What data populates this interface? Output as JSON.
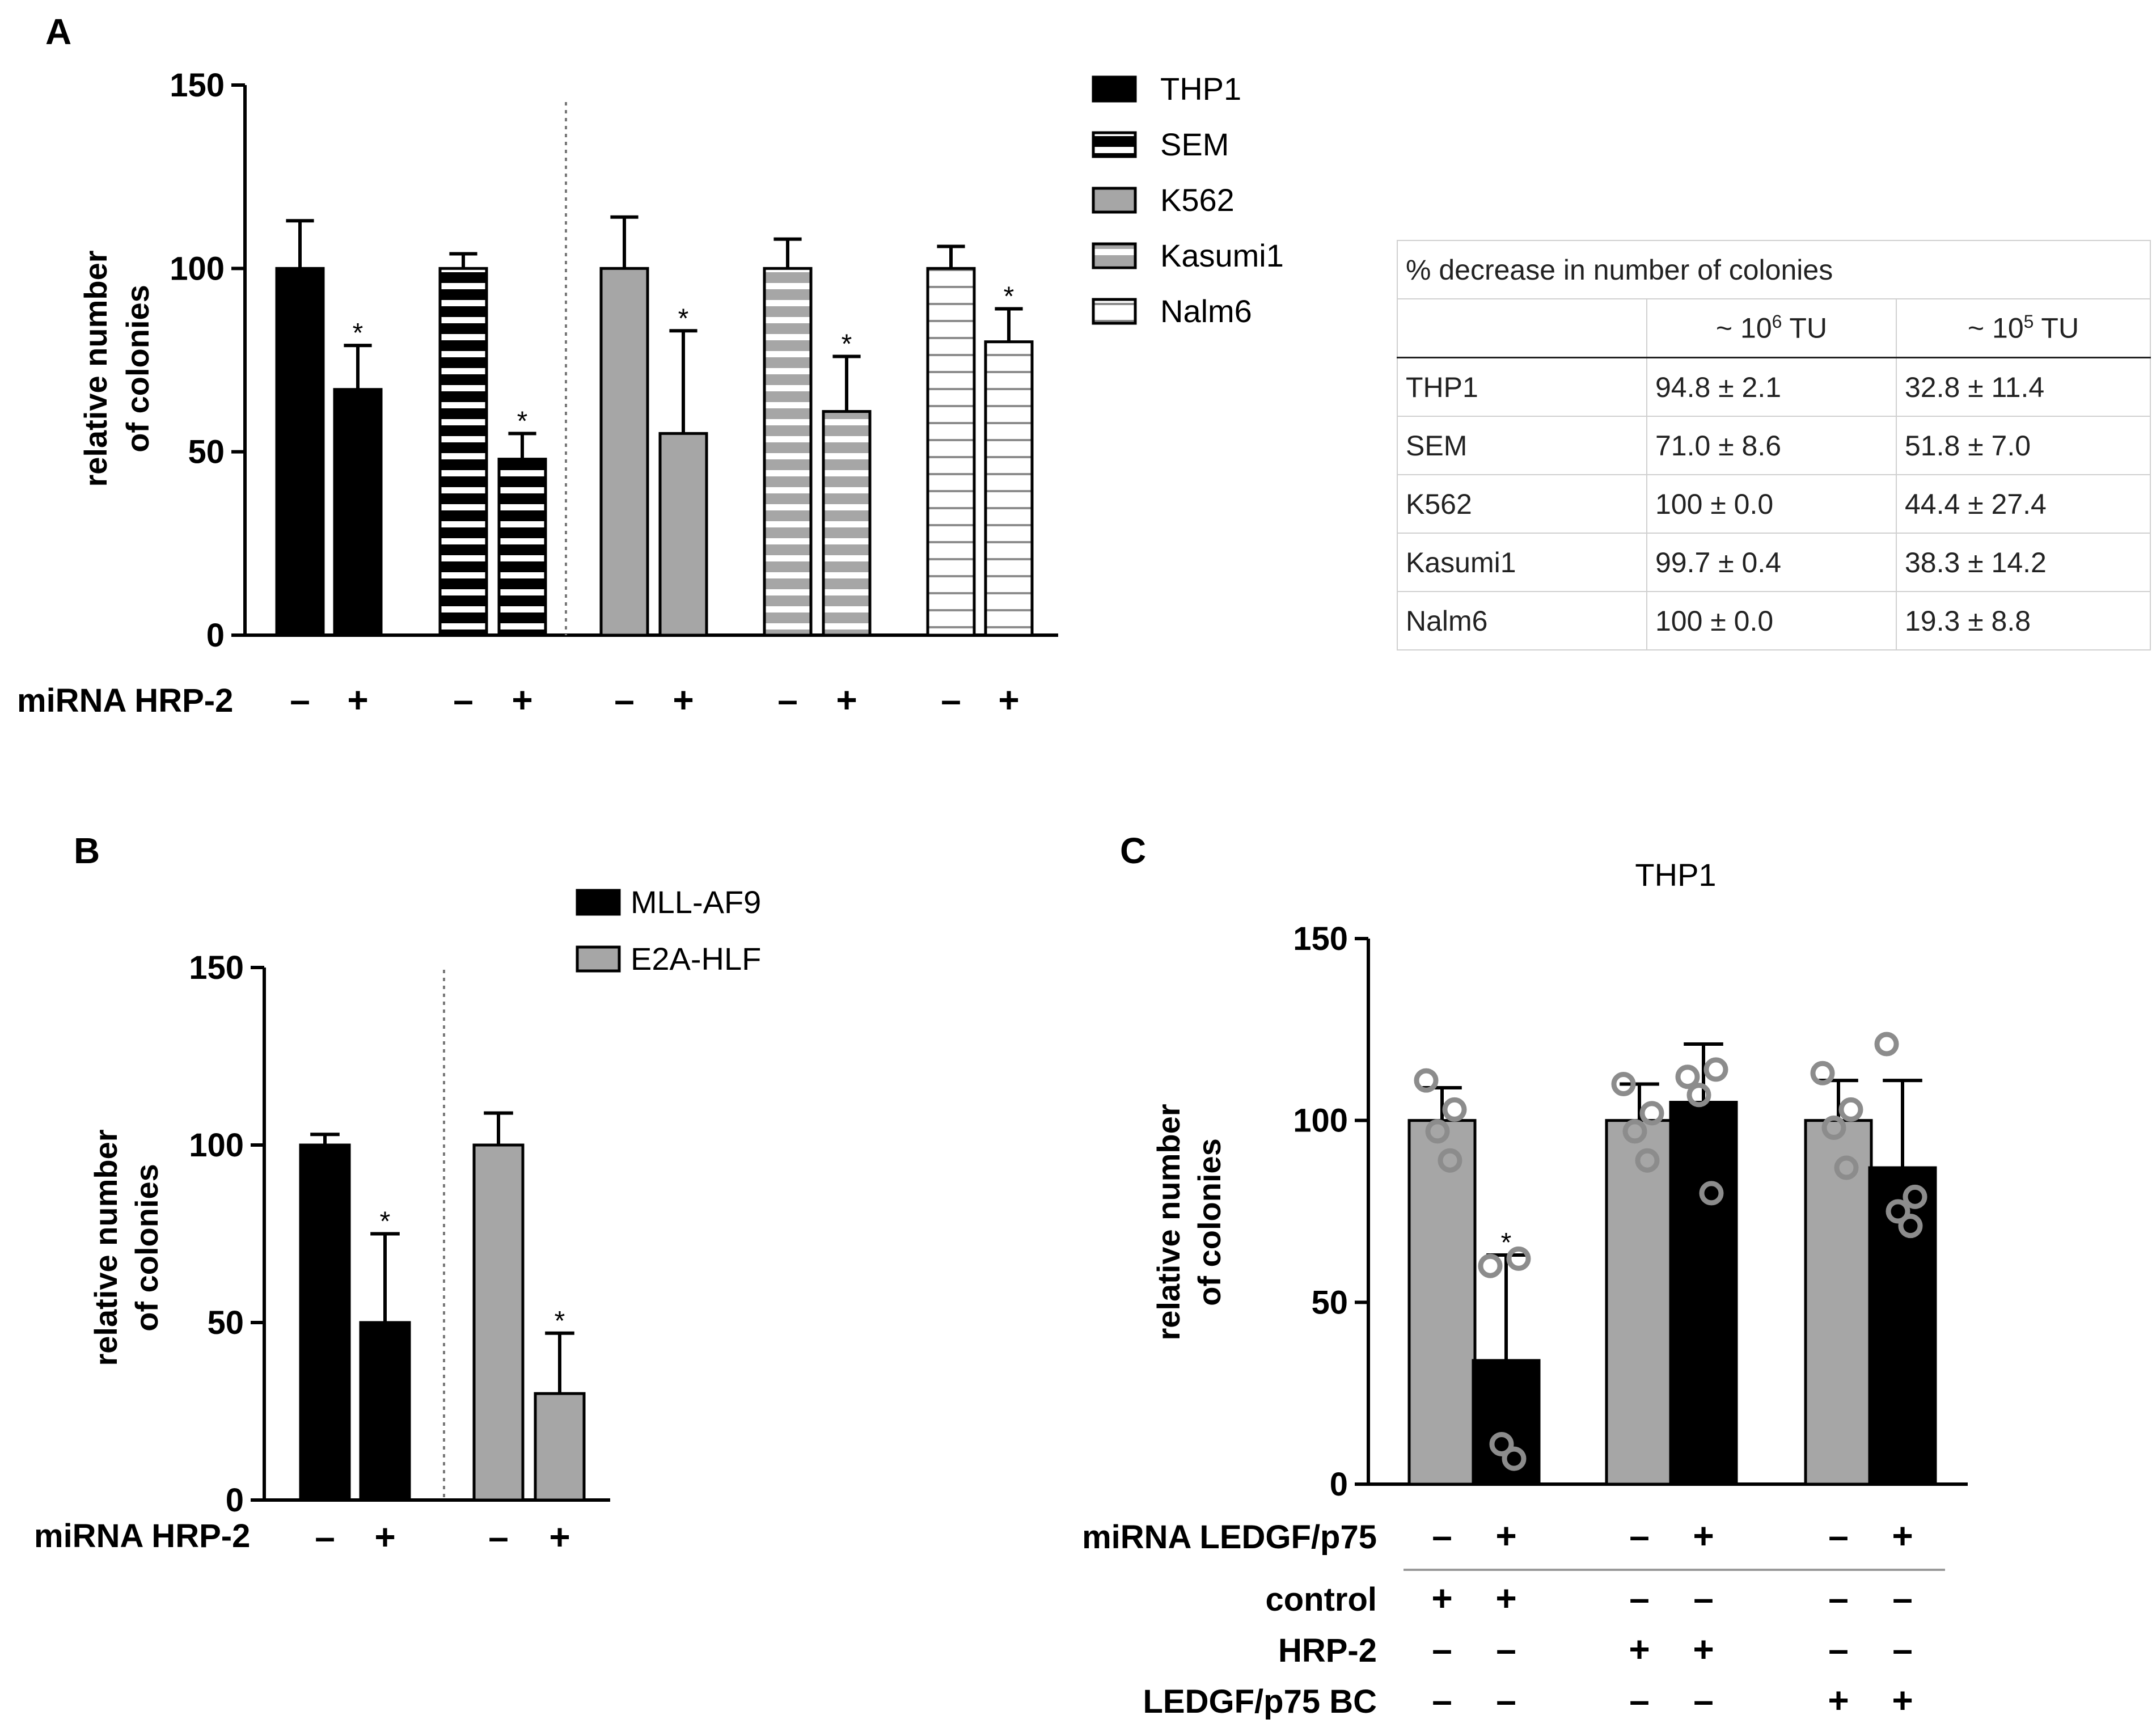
{
  "panel_a": {
    "label": "A",
    "miRNA_label": "miRNA HRP-2",
    "legend": [
      "THP1",
      "SEM",
      "K562",
      "Kasumi1",
      "Nalm6"
    ],
    "table": {
      "title": "% decrease in number of colonies",
      "col1_prefix": "~ 10",
      "col1_exp": "6",
      "col1_suffix": " TU",
      "col2_prefix": "~ 10",
      "col2_exp": "5",
      "col2_suffix": " TU",
      "rows": [
        [
          "THP1",
          "94.8 ± 2.1",
          "32.8 ± 11.4"
        ],
        [
          "SEM",
          "71.0 ± 8.6",
          "51.8 ± 7.0"
        ],
        [
          "K562",
          "100 ± 0.0",
          "44.4 ± 27.4"
        ],
        [
          "Kasumi1",
          "99.7 ± 0.4",
          "38.3 ± 14.2"
        ],
        [
          "Nalm6",
          "100 ± 0.0",
          "19.3 ± 8.8"
        ]
      ]
    }
  },
  "panel_b": {
    "label": "B",
    "miRNA_label": "miRNA HRP-2",
    "legend": [
      "MLL-AF9",
      "E2A-HLF"
    ]
  },
  "panel_c": {
    "label": "C",
    "rows": [
      {
        "label": "miRNA LEDGF/p75",
        "signs": [
          "–",
          "+",
          "–",
          "+",
          "–",
          "+"
        ]
      },
      {
        "label": "control",
        "signs": [
          "+",
          "+",
          "–",
          "–",
          "–",
          "–"
        ]
      },
      {
        "label": "HRP-2",
        "signs": [
          "–",
          "–",
          "+",
          "+",
          "–",
          "–"
        ]
      },
      {
        "label": "LEDGF/p75 BC",
        "signs": [
          "–",
          "–",
          "–",
          "–",
          "+",
          "+"
        ]
      }
    ]
  },
  "colors": {
    "black": "#000000",
    "gray": "#a6a6a6",
    "light_gray": "#bfbfbf",
    "dot_gray": "#8c8c8c"
  },
  "chart_data": [
    {
      "type": "bar",
      "panel": "A",
      "title": "",
      "xlabel": "",
      "ylabel": "relative number of colonies",
      "ylim": [
        0,
        150
      ],
      "yticks": [
        0,
        50,
        100,
        150
      ],
      "categories": [
        "THP1 –",
        "THP1 +",
        "SEM –",
        "SEM +",
        "K562 –",
        "K562 +",
        "Kasumi1 –",
        "Kasumi1 +",
        "Nalm6 –",
        "Nalm6 +"
      ],
      "values": [
        100,
        67,
        100,
        48,
        100,
        55,
        100,
        61,
        100,
        80
      ],
      "errors": [
        13,
        12,
        4,
        7,
        14,
        28,
        8,
        15,
        6,
        9
      ],
      "significant": [
        false,
        true,
        false,
        true,
        false,
        true,
        false,
        true,
        false,
        true
      ],
      "x_signs": [
        "–",
        "+",
        "–",
        "+",
        "–",
        "+",
        "–",
        "+",
        "–",
        "+"
      ],
      "legend": "right"
    },
    {
      "type": "bar",
      "panel": "B",
      "title": "",
      "xlabel": "",
      "ylabel": "relative number of colonies",
      "ylim": [
        0,
        150
      ],
      "yticks": [
        0,
        50,
        100,
        150
      ],
      "categories": [
        "MLL-AF9 –",
        "MLL-AF9 +",
        "E2A-HLF –",
        "E2A-HLF +"
      ],
      "values": [
        100,
        50,
        100,
        30
      ],
      "errors": [
        3,
        25,
        9,
        17
      ],
      "significant": [
        false,
        true,
        false,
        true
      ],
      "x_signs": [
        "–",
        "+",
        "–",
        "+"
      ],
      "legend": "top-right"
    },
    {
      "type": "bar",
      "panel": "C",
      "title": "THP1",
      "xlabel": "",
      "ylabel": "relative number of colonies",
      "ylim": [
        0,
        150
      ],
      "yticks": [
        0,
        50,
        100,
        150
      ],
      "categories": [
        "control –",
        "control +",
        "HRP-2 –",
        "HRP-2 +",
        "LEDGF/p75 BC –",
        "LEDGF/p75 BC +"
      ],
      "values": [
        100,
        34,
        100,
        105,
        100,
        87
      ],
      "errors": [
        9,
        29,
        10,
        16,
        11,
        24
      ],
      "significant": [
        false,
        true,
        false,
        false,
        false,
        false
      ],
      "points": [
        [
          111,
          103,
          97,
          89
        ],
        [
          60,
          62,
          11,
          7
        ],
        [
          110,
          102,
          97,
          89
        ],
        [
          112,
          114,
          107,
          80
        ],
        [
          113,
          103,
          98,
          87
        ],
        [
          121,
          79,
          75,
          71
        ]
      ]
    }
  ]
}
